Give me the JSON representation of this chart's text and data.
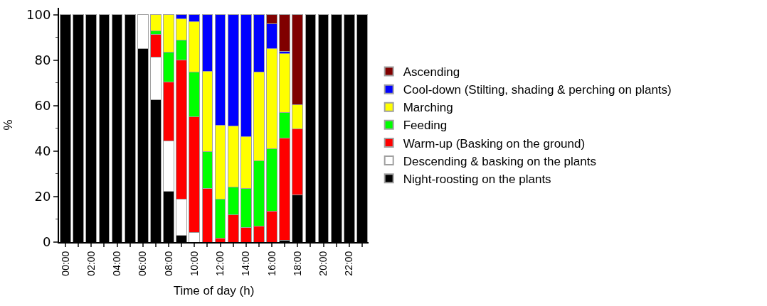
{
  "chart_data": {
    "type": "bar",
    "stacked": true,
    "xlabel": "Time of day (h)",
    "ylabel": "%",
    "categories": [
      "00:00",
      null,
      "02:00",
      null,
      "04:00",
      null,
      "06:00",
      null,
      "08:00",
      null,
      "10:00",
      null,
      "12:00",
      null,
      "14:00",
      null,
      "16:00",
      null,
      "18:00",
      null,
      "20:00",
      null,
      "22:00",
      null
    ],
    "series": [
      {
        "name": "Night-roosting on the plants",
        "color": "#000000",
        "values": [
          100,
          100,
          100,
          100,
          100,
          100,
          85,
          62.7,
          22.3,
          2.9,
          null,
          null,
          null,
          null,
          null,
          null,
          null,
          0.7,
          20.9,
          100,
          100,
          100,
          100,
          100
        ]
      },
      {
        "name": "Descending & basking on the plants",
        "color": "#ffffff",
        "values": [
          null,
          null,
          null,
          null,
          null,
          null,
          15,
          18.6,
          22.3,
          16,
          4.3,
          null,
          null,
          null,
          null,
          null,
          null,
          null,
          null,
          null,
          null,
          null,
          null,
          null
        ]
      },
      {
        "name": "Warm-up (Basking on the ground)",
        "color": "#ff0000",
        "values": [
          null,
          null,
          null,
          null,
          null,
          null,
          null,
          9.9,
          25.7,
          61.2,
          50.7,
          23.7,
          1.6,
          12.1,
          6.4,
          7.1,
          13.5,
          44.9,
          28.9,
          null,
          null,
          null,
          null,
          null
        ]
      },
      {
        "name": "Feeding",
        "color": "#00ff00",
        "values": [
          null,
          null,
          null,
          null,
          null,
          null,
          null,
          1.8,
          13.3,
          8.8,
          19.7,
          16,
          17.4,
          12,
          17.3,
          28.7,
          27.5,
          11.5,
          null,
          null,
          null,
          null,
          null,
          null
        ]
      },
      {
        "name": "Marching",
        "color": "#ffff00",
        "values": [
          null,
          null,
          null,
          null,
          null,
          null,
          null,
          7,
          16.4,
          9.4,
          22.2,
          35.4,
          32.3,
          26.9,
          22.8,
          38.8,
          44.2,
          25.7,
          10.6,
          null,
          null,
          null,
          null,
          null
        ]
      },
      {
        "name": "Cool-down (Stilting, shading & perching on plants)",
        "color": "#0000ff",
        "values": [
          null,
          null,
          null,
          null,
          null,
          null,
          null,
          null,
          null,
          1.7,
          3.1,
          24.9,
          48.7,
          49,
          53.5,
          25.4,
          10.8,
          1,
          null,
          null,
          null,
          null,
          null,
          null
        ]
      },
      {
        "name": "Ascending",
        "color": "#800000",
        "values": [
          null,
          null,
          null,
          null,
          null,
          null,
          null,
          null,
          null,
          null,
          null,
          null,
          null,
          null,
          null,
          null,
          4,
          16.2,
          39.6,
          null,
          null,
          null,
          null,
          null
        ]
      }
    ],
    "ylim": [
      0,
      103
    ],
    "yticks": [
      0,
      20,
      40,
      60,
      80,
      100
    ],
    "legend": "right"
  }
}
